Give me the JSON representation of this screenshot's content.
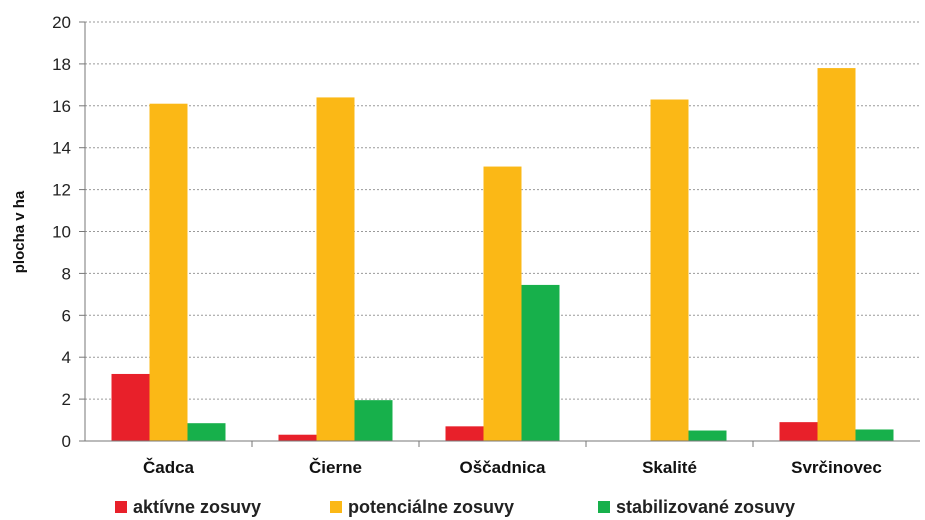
{
  "chart_data": {
    "type": "bar",
    "ylabel": "plocha v ha",
    "ylim": [
      0,
      20
    ],
    "yticks": [
      "0",
      "2",
      "4",
      "6",
      "8",
      "10",
      "12",
      "14",
      "16",
      "18",
      "20"
    ],
    "grid": true,
    "legend_position": "bottom",
    "categories": [
      "Čadca",
      "Čierne",
      "Oščadnica",
      "Skalité",
      "Svrčinovec"
    ],
    "series": [
      {
        "name": "aktívne zosuvy",
        "color": "#e8202a",
        "values": [
          3.2,
          0.3,
          0.7,
          0,
          0.9
        ]
      },
      {
        "name": "potenciálne zosuvy",
        "color": "#fbb816",
        "values": [
          16.1,
          16.4,
          13.1,
          16.3,
          17.8
        ]
      },
      {
        "name": "stabilizované zosuvy",
        "color": "#17b04b",
        "values": [
          0.85,
          1.95,
          7.45,
          0.5,
          0.55
        ]
      }
    ]
  }
}
